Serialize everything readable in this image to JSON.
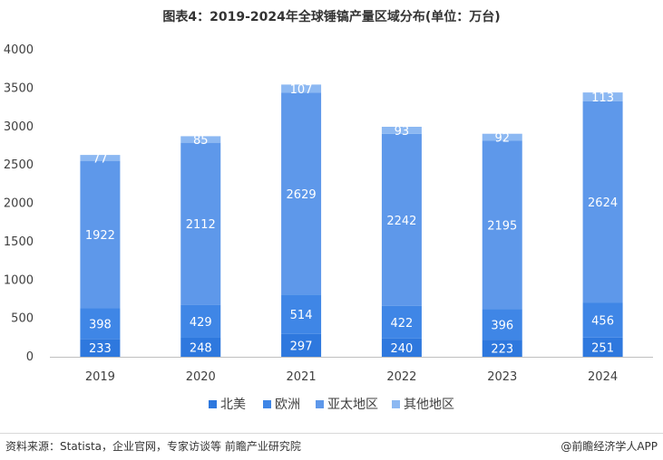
{
  "title": "图表4：2019-2024年全球锤镐产量区域分布(单位：万台)",
  "footer": {
    "source": "资料来源：Statista，企业官网，专家访谈等 前瞻产业研究院",
    "brand": "@前瞻经济学人APP"
  },
  "colors": {
    "北美": "#2e78de",
    "欧洲": "#3f86e6",
    "亚太地区": "#5e98ea",
    "其他地区": "#8cb8f2"
  },
  "chart_data": {
    "type": "bar",
    "stacked": true,
    "categories": [
      "2019",
      "2020",
      "2021",
      "2022",
      "2023",
      "2024"
    ],
    "series": [
      {
        "name": "北美",
        "values": [
          233,
          248,
          297,
          240,
          223,
          251
        ]
      },
      {
        "name": "欧洲",
        "values": [
          398,
          429,
          514,
          422,
          396,
          456
        ]
      },
      {
        "name": "亚太地区",
        "values": [
          1922,
          2112,
          2629,
          2242,
          2195,
          2624
        ]
      },
      {
        "name": "其他地区",
        "values": [
          77,
          85,
          107,
          93,
          92,
          113
        ]
      }
    ],
    "ylim": [
      0,
      4000
    ],
    "yticks": [
      0,
      500,
      1000,
      1500,
      2000,
      2500,
      3000,
      3500,
      4000
    ],
    "grid": false,
    "legend": "bottom"
  }
}
